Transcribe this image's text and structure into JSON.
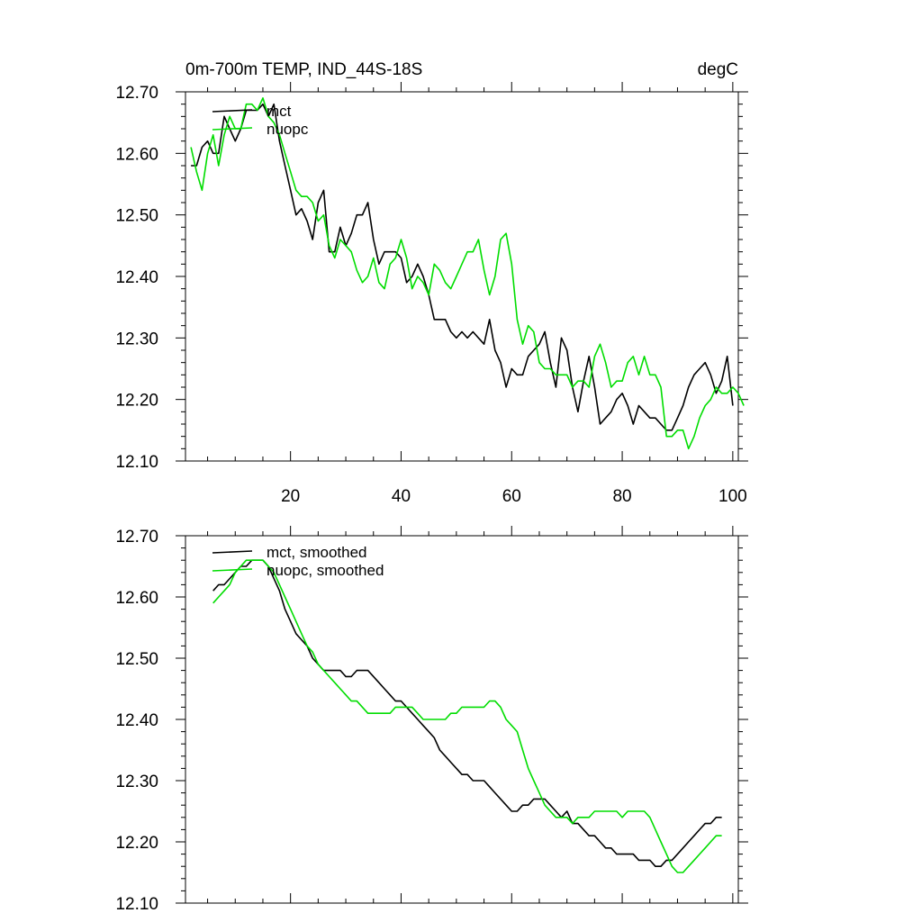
{
  "chart_data": [
    {
      "type": "line",
      "title_left": "0m-700m TEMP, IND_44S-18S",
      "title_right": "degC",
      "xlim": [
        1,
        101
      ],
      "ylim": [
        12.1,
        12.7
      ],
      "x_ticks": [
        20,
        40,
        60,
        80,
        100
      ],
      "x_tick_labels": [
        "20",
        "40",
        "60",
        "80",
        "100"
      ],
      "y_ticks": [
        12.1,
        12.2,
        12.3,
        12.4,
        12.5,
        12.6,
        12.7
      ],
      "y_tick_labels": [
        "12.10",
        "12.20",
        "12.30",
        "12.40",
        "12.50",
        "12.60",
        "12.70"
      ],
      "legend_placement": "top-left",
      "series": [
        {
          "name": "mct",
          "color": "#000000",
          "x_start": 2,
          "values": [
            12.58,
            12.58,
            12.61,
            12.62,
            12.6,
            12.6,
            12.66,
            12.64,
            12.62,
            12.64,
            12.67,
            12.67,
            12.67,
            12.68,
            12.66,
            12.68,
            12.62,
            12.58,
            12.54,
            12.5,
            12.51,
            12.49,
            12.46,
            12.52,
            12.54,
            12.44,
            12.44,
            12.48,
            12.45,
            12.47,
            12.5,
            12.5,
            12.52,
            12.46,
            12.42,
            12.44,
            12.44,
            12.44,
            12.43,
            12.39,
            12.4,
            12.42,
            12.4,
            12.37,
            12.33,
            12.33,
            12.33,
            12.31,
            12.3,
            12.31,
            12.3,
            12.31,
            12.3,
            12.29,
            12.33,
            12.28,
            12.26,
            12.22,
            12.25,
            12.24,
            12.24,
            12.27,
            12.28,
            12.29,
            12.31,
            12.26,
            12.22,
            12.3,
            12.28,
            12.22,
            12.18,
            12.23,
            12.27,
            12.22,
            12.16,
            12.17,
            12.18,
            12.2,
            12.21,
            12.19,
            12.16,
            12.19,
            12.18,
            12.17,
            12.17,
            12.16,
            12.15,
            12.15,
            12.17,
            12.19,
            12.22,
            12.24,
            12.25,
            12.26,
            12.24,
            12.21,
            12.23,
            12.27,
            12.19
          ]
        },
        {
          "name": "nuopc",
          "color": "#00dd00",
          "x_start": 2,
          "values": [
            12.61,
            12.57,
            12.54,
            12.6,
            12.63,
            12.58,
            12.63,
            12.66,
            12.64,
            12.64,
            12.68,
            12.68,
            12.67,
            12.69,
            12.66,
            12.65,
            12.63,
            12.6,
            12.57,
            12.54,
            12.53,
            12.53,
            12.52,
            12.49,
            12.5,
            12.45,
            12.43,
            12.46,
            12.45,
            12.44,
            12.41,
            12.39,
            12.4,
            12.43,
            12.39,
            12.38,
            12.42,
            12.43,
            12.46,
            12.43,
            12.38,
            12.4,
            12.39,
            12.37,
            12.42,
            12.41,
            12.39,
            12.38,
            12.4,
            12.42,
            12.44,
            12.44,
            12.46,
            12.41,
            12.37,
            12.4,
            12.46,
            12.47,
            12.42,
            12.33,
            12.29,
            12.32,
            12.31,
            12.26,
            12.25,
            12.25,
            12.24,
            12.24,
            12.24,
            12.22,
            12.23,
            12.23,
            12.22,
            12.27,
            12.29,
            12.26,
            12.22,
            12.23,
            12.23,
            12.26,
            12.27,
            12.24,
            12.27,
            12.24,
            12.24,
            12.22,
            12.14,
            12.14,
            12.15,
            12.15,
            12.12,
            12.14,
            12.17,
            12.19,
            12.2,
            12.22,
            12.21,
            12.21,
            12.22,
            12.21,
            12.19
          ]
        }
      ]
    },
    {
      "type": "line",
      "xlim": [
        1,
        101
      ],
      "ylim": [
        12.1,
        12.7
      ],
      "x_ticks": [
        20,
        40,
        60,
        80,
        100
      ],
      "y_ticks": [
        12.1,
        12.2,
        12.3,
        12.4,
        12.5,
        12.6,
        12.7
      ],
      "y_tick_labels": [
        "12.10",
        "12.20",
        "12.30",
        "12.40",
        "12.50",
        "12.60",
        "12.70"
      ],
      "legend_placement": "top-left",
      "series": [
        {
          "name": "mct, smoothed",
          "color": "#000000",
          "x_start": 6,
          "values": [
            12.61,
            12.62,
            12.62,
            12.63,
            12.64,
            12.65,
            12.65,
            12.66,
            12.66,
            12.66,
            12.65,
            12.63,
            12.61,
            12.58,
            12.56,
            12.54,
            12.53,
            12.52,
            12.5,
            12.49,
            12.48,
            12.48,
            12.48,
            12.48,
            12.47,
            12.47,
            12.48,
            12.48,
            12.48,
            12.47,
            12.46,
            12.45,
            12.44,
            12.43,
            12.43,
            12.42,
            12.41,
            12.4,
            12.39,
            12.38,
            12.37,
            12.35,
            12.34,
            12.33,
            12.32,
            12.31,
            12.31,
            12.3,
            12.3,
            12.3,
            12.29,
            12.28,
            12.27,
            12.26,
            12.25,
            12.25,
            12.26,
            12.26,
            12.27,
            12.27,
            12.27,
            12.26,
            12.25,
            12.24,
            12.25,
            12.23,
            12.23,
            12.22,
            12.21,
            12.21,
            12.2,
            12.19,
            12.19,
            12.18,
            12.18,
            12.18,
            12.18,
            12.17,
            12.17,
            12.17,
            12.16,
            12.16,
            12.17,
            12.17,
            12.18,
            12.19,
            12.2,
            12.21,
            12.22,
            12.23,
            12.23,
            12.24,
            12.24
          ]
        },
        {
          "name": "nuopc, smoothed",
          "color": "#00dd00",
          "x_start": 6,
          "values": [
            12.59,
            12.6,
            12.61,
            12.62,
            12.64,
            12.65,
            12.66,
            12.66,
            12.66,
            12.66,
            12.65,
            12.64,
            12.62,
            12.6,
            12.58,
            12.56,
            12.54,
            12.52,
            12.51,
            12.49,
            12.48,
            12.47,
            12.46,
            12.45,
            12.44,
            12.43,
            12.43,
            12.42,
            12.41,
            12.41,
            12.41,
            12.41,
            12.41,
            12.42,
            12.42,
            12.42,
            12.42,
            12.41,
            12.4,
            12.4,
            12.4,
            12.4,
            12.4,
            12.41,
            12.41,
            12.42,
            12.42,
            12.42,
            12.42,
            12.42,
            12.43,
            12.43,
            12.42,
            12.4,
            12.39,
            12.38,
            12.35,
            12.32,
            12.3,
            12.28,
            12.26,
            12.25,
            12.24,
            12.24,
            12.24,
            12.23,
            12.24,
            12.24,
            12.24,
            12.25,
            12.25,
            12.25,
            12.25,
            12.25,
            12.24,
            12.25,
            12.25,
            12.25,
            12.25,
            12.24,
            12.22,
            12.2,
            12.18,
            12.16,
            12.15,
            12.15,
            12.16,
            12.17,
            12.18,
            12.19,
            12.2,
            12.21,
            12.21
          ]
        }
      ]
    }
  ]
}
